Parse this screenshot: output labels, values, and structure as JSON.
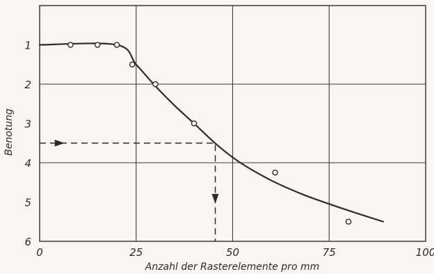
{
  "chart_data": {
    "type": "line",
    "title": "",
    "xlabel": "Anzahl der Rasterelemente pro mm",
    "ylabel": "Benotung",
    "xlim": [
      0,
      100
    ],
    "ylim": [
      0,
      6
    ],
    "y_inverted": true,
    "grid": true,
    "x_ticks": [
      0,
      25,
      50,
      75,
      100
    ],
    "y_ticks": [
      1,
      2,
      3,
      4,
      5,
      6
    ],
    "points": [
      {
        "x": 8,
        "y": 1.0
      },
      {
        "x": 15,
        "y": 1.0
      },
      {
        "x": 20,
        "y": 1.0
      },
      {
        "x": 24,
        "y": 1.5
      },
      {
        "x": 30,
        "y": 2.0
      },
      {
        "x": 40,
        "y": 3.0
      },
      {
        "x": 61,
        "y": 4.25
      },
      {
        "x": 80,
        "y": 5.5
      }
    ],
    "curve": [
      {
        "x": 0,
        "y": 1.0
      },
      {
        "x": 20,
        "y": 1.0
      },
      {
        "x": 25,
        "y": 1.5
      },
      {
        "x": 30,
        "y": 2.05
      },
      {
        "x": 35,
        "y": 2.55
      },
      {
        "x": 40,
        "y": 3.0
      },
      {
        "x": 46,
        "y": 3.55
      },
      {
        "x": 52,
        "y": 4.0
      },
      {
        "x": 60,
        "y": 4.45
      },
      {
        "x": 68,
        "y": 4.8
      },
      {
        "x": 75,
        "y": 5.05
      },
      {
        "x": 82,
        "y": 5.28
      },
      {
        "x": 89,
        "y": 5.5
      }
    ],
    "guide": {
      "x": 45.5,
      "y": 3.5,
      "arrow_in_x": 5,
      "arrow_down_y": 4.9
    }
  }
}
